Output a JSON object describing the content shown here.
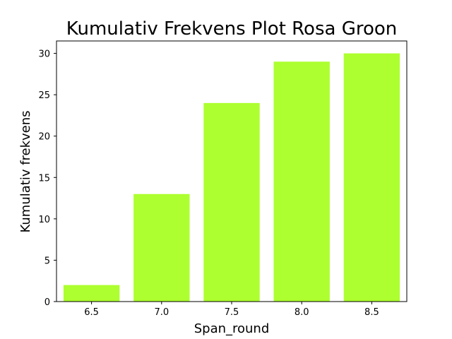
{
  "chart_data": {
    "type": "bar",
    "title": "Kumulativ Frekvens Plot Rosa Groon",
    "xlabel": "Span_round",
    "ylabel": "Kumulativ frekvens",
    "categories": [
      "6.5",
      "7.0",
      "7.5",
      "8.0",
      "8.5"
    ],
    "x": [
      6.5,
      7.0,
      7.5,
      8.0,
      8.5
    ],
    "values": [
      2,
      13,
      24,
      29,
      30
    ],
    "xlim": [
      6.25,
      8.75
    ],
    "ylim": [
      0,
      31.5
    ],
    "yticks": [
      0,
      5,
      10,
      15,
      20,
      25,
      30
    ],
    "bar_color": "#adff2f",
    "grid": false,
    "legend": false
  }
}
